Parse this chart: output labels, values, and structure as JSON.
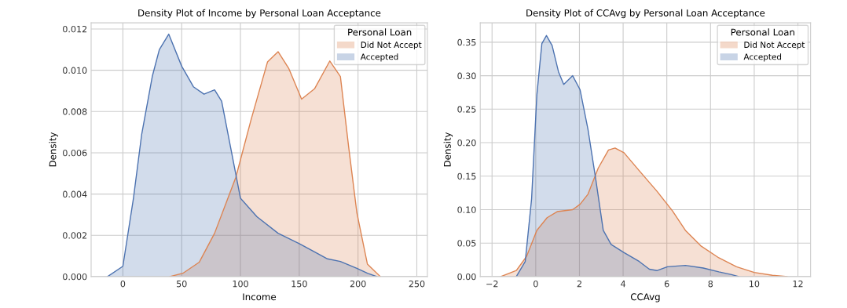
{
  "chart_data": [
    {
      "type": "area",
      "title": "Density Plot of Income by Personal Loan Acceptance",
      "xlabel": "Income",
      "ylabel": "Density",
      "legend_title": "Personal Loan",
      "legend": "top right",
      "grid": true,
      "xlim": [
        -27,
        259
      ],
      "ylim": [
        0,
        0.0123
      ],
      "xticks": [
        0,
        50,
        100,
        150,
        200,
        250
      ],
      "yticks": [
        {
          "value": 0,
          "label": "0.000"
        },
        {
          "value": 0.002,
          "label": "0.002"
        },
        {
          "value": 0.004,
          "label": "0.004"
        },
        {
          "value": 0.006,
          "label": "0.006"
        },
        {
          "value": 0.008,
          "label": "0.008"
        },
        {
          "value": 0.01,
          "label": "0.010"
        },
        {
          "value": 0.012,
          "label": "0.012"
        }
      ],
      "series": [
        {
          "name": "Did Not Accept",
          "color": "#dd8452",
          "x": [
            40,
            51,
            65,
            78,
            96,
            109,
            123,
            132,
            141,
            152,
            163,
            176,
            185,
            192,
            199,
            208,
            219
          ],
          "values": [
            0,
            0.00016,
            0.0007,
            0.0021,
            0.0048,
            0.0076,
            0.0104,
            0.0109,
            0.0101,
            0.0086,
            0.0091,
            0.01045,
            0.0097,
            0.0063,
            0.0031,
            0.0006,
            0
          ]
        },
        {
          "name": "Accepted",
          "color": "#4c72b0",
          "x": [
            -13,
            0,
            9,
            16,
            25,
            31,
            39,
            50,
            60,
            69,
            78,
            84,
            91.5,
            100,
            114,
            132,
            150,
            163,
            174,
            185,
            199,
            208,
            216
          ],
          "values": [
            0,
            0.0005,
            0.0038,
            0.0069,
            0.0097,
            0.011,
            0.01175,
            0.0102,
            0.0092,
            0.00884,
            0.00905,
            0.0085,
            0.0063,
            0.0038,
            0.0029,
            0.0021,
            0.0016,
            0.0012,
            0.00086,
            0.00073,
            0.0004,
            0.00016,
            0
          ]
        }
      ]
    },
    {
      "type": "area",
      "title": "Density Plot of CCAvg by Personal Loan Acceptance",
      "xlabel": "CCAvg",
      "ylabel": "Density",
      "legend_title": "Personal Loan",
      "legend": "top right",
      "grid": true,
      "xlim": [
        -2.54,
        12.58
      ],
      "ylim": [
        0,
        0.379
      ],
      "xticks": [
        {
          "value": -2,
          "label": "−2"
        },
        0,
        2,
        4,
        6,
        8,
        10,
        12
      ],
      "yticks": [
        {
          "value": 0,
          "label": "0.00"
        },
        {
          "value": 0.05,
          "label": "0.05"
        },
        {
          "value": 0.1,
          "label": "0.10"
        },
        {
          "value": 0.15,
          "label": "0.15"
        },
        {
          "value": 0.2,
          "label": "0.20"
        },
        {
          "value": 0.25,
          "label": "0.25"
        },
        {
          "value": 0.3,
          "label": "0.30"
        },
        {
          "value": 0.35,
          "label": "0.35"
        }
      ],
      "series": [
        {
          "name": "Did Not Accept",
          "color": "#dd8452",
          "x": [
            -1.6,
            -0.89,
            -0.42,
            0.05,
            0.52,
            0.98,
            1.69,
            2.03,
            2.39,
            2.86,
            3.33,
            3.63,
            4.04,
            4.74,
            5.56,
            6.26,
            6.85,
            7.55,
            8.38,
            9.19,
            10.0,
            10.83,
            11.5
          ],
          "values": [
            0,
            0.009,
            0.03,
            0.069,
            0.088,
            0.097,
            0.1,
            0.108,
            0.123,
            0.162,
            0.189,
            0.192,
            0.185,
            0.158,
            0.127,
            0.098,
            0.069,
            0.046,
            0.028,
            0.0147,
            0.0062,
            0.002,
            0
          ]
        },
        {
          "name": "Accepted",
          "color": "#4c72b0",
          "x": [
            -0.89,
            -0.48,
            -0.19,
            0.05,
            0.28,
            0.49,
            0.75,
            1.04,
            1.28,
            1.69,
            2.03,
            2.39,
            2.74,
            3.09,
            3.45,
            4.03,
            4.74,
            5.2,
            5.56,
            6.03,
            6.85,
            7.67,
            8.38,
            8.96,
            9.3
          ],
          "values": [
            0,
            0.0225,
            0.116,
            0.271,
            0.348,
            0.36,
            0.345,
            0.306,
            0.287,
            0.3,
            0.279,
            0.22,
            0.147,
            0.069,
            0.048,
            0.036,
            0.0225,
            0.011,
            0.009,
            0.0147,
            0.0167,
            0.0128,
            0.007,
            0.003,
            0
          ]
        }
      ]
    }
  ]
}
